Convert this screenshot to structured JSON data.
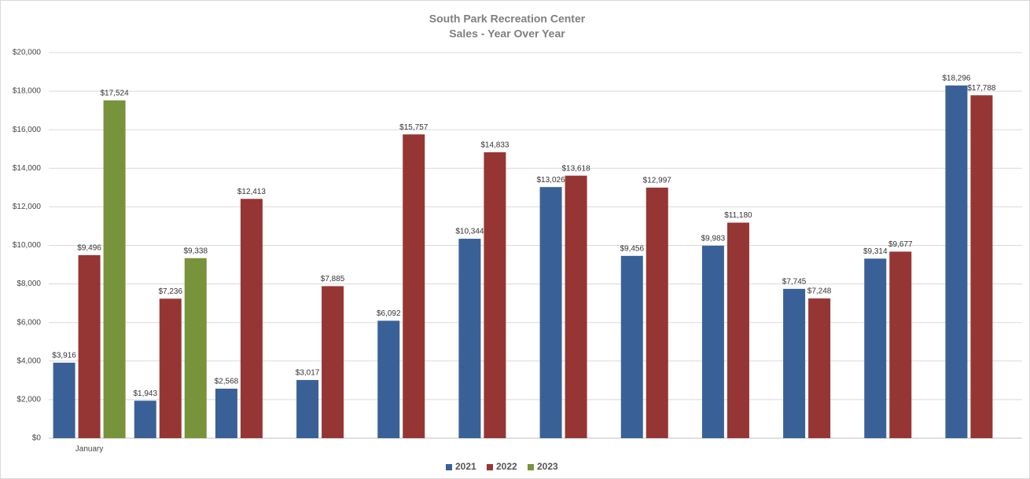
{
  "chart_data": {
    "type": "bar",
    "title": "South Park Recreation Center",
    "subtitle": "Sales - Year Over Year",
    "categories": [
      "January",
      null,
      null,
      null,
      null,
      null,
      null,
      null,
      null,
      null,
      null,
      null
    ],
    "series": [
      {
        "name": "2021",
        "color": "#3a6197",
        "values": [
          3916,
          1943,
          2568,
          3017,
          6092,
          10344,
          13026,
          9456,
          9983,
          7745,
          9314,
          18296
        ],
        "value_labels": [
          "$3,916",
          "$1,943",
          "$2,568",
          "$3,017",
          "$6,092",
          "$10,344",
          "$13,026",
          "$9,456",
          "$9,983",
          "$7,745",
          "$9,314",
          "$18,296"
        ]
      },
      {
        "name": "2022",
        "color": "#963634",
        "values": [
          9496,
          7236,
          12413,
          7885,
          15757,
          14833,
          13618,
          12997,
          11180,
          7248,
          9677,
          17788
        ],
        "value_labels": [
          "$9,496",
          "$7,236",
          "$12,413",
          "$7,885",
          "$15,757",
          "$14,833",
          "$13,618",
          "$12,997",
          "$11,180",
          "$7,248",
          "$9,677",
          "$17,788"
        ]
      },
      {
        "name": "2023",
        "color": "#77933c",
        "values": [
          17524,
          9338,
          null,
          null,
          null,
          null,
          null,
          null,
          null,
          null,
          null,
          null
        ],
        "value_labels": [
          "$17,524",
          "$9,338",
          null,
          null,
          null,
          null,
          null,
          null,
          null,
          null,
          null,
          null
        ]
      }
    ],
    "ylim": [
      0,
      20000
    ],
    "yticks": [
      {
        "value": 0,
        "label": "$0"
      },
      {
        "value": 2000,
        "label": "$2,000"
      },
      {
        "value": 4000,
        "label": "$4,000"
      },
      {
        "value": 6000,
        "label": "$6,000"
      },
      {
        "value": 8000,
        "label": "$8,000"
      },
      {
        "value": 10000,
        "label": "$10,000"
      },
      {
        "value": 12000,
        "label": "$12,000"
      },
      {
        "value": 14000,
        "label": "$14,000"
      },
      {
        "value": 16000,
        "label": "$16,000"
      },
      {
        "value": 18000,
        "label": "$18,000"
      },
      {
        "value": 20000,
        "label": "$20,000"
      }
    ],
    "grid": true,
    "legend": "bottom"
  }
}
